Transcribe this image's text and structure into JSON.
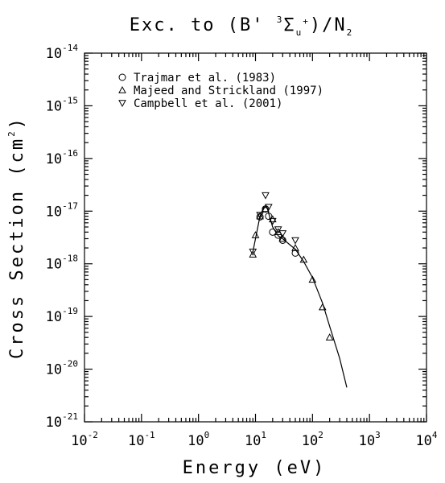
{
  "chart_data": {
    "type": "scatter",
    "title": "Exc. to (B' ³Σᵤ⁺)/N₂",
    "title_parts": {
      "pre": "Exc. to (B'",
      "sup": "3",
      "sym": "Σ",
      "sub_u": "u",
      "sup_plus": "+",
      "post": ")/N",
      "sub2": "2"
    },
    "xlabel": "Energy (eV)",
    "ylabel": "Cross Section (cm²)",
    "ylabel_parts": {
      "main": "Cross Section (cm",
      "sup": "2",
      "end": ")"
    },
    "xscale": "log",
    "yscale": "log",
    "xlim": [
      0.01,
      10000
    ],
    "ylim": [
      1e-21,
      1e-14
    ],
    "x_ticks": [
      {
        "base": "10",
        "exp": "-2"
      },
      {
        "base": "10",
        "exp": "-1"
      },
      {
        "base": "10",
        "exp": "0"
      },
      {
        "base": "10",
        "exp": "1"
      },
      {
        "base": "10",
        "exp": "2"
      },
      {
        "base": "10",
        "exp": "3"
      },
      {
        "base": "10",
        "exp": "4"
      }
    ],
    "y_ticks": [
      {
        "base": "10",
        "exp": "-21"
      },
      {
        "base": "10",
        "exp": "-20"
      },
      {
        "base": "10",
        "exp": "-19"
      },
      {
        "base": "10",
        "exp": "-18"
      },
      {
        "base": "10",
        "exp": "-17"
      },
      {
        "base": "10",
        "exp": "-16"
      },
      {
        "base": "10",
        "exp": "-15"
      },
      {
        "base": "10",
        "exp": "-14"
      }
    ],
    "legend_position": "top-left",
    "series": [
      {
        "name": "Trajmar et al. (1983)",
        "marker": "circle",
        "points": [
          [
            12,
            7.8e-18
          ],
          [
            15,
            1.1e-17
          ],
          [
            17,
            8e-18
          ],
          [
            20,
            4e-18
          ],
          [
            25,
            3.5e-18
          ],
          [
            30,
            2.8e-18
          ],
          [
            50,
            1.6e-18
          ]
        ]
      },
      {
        "name": "Majeed and Strickland (1997)",
        "marker": "triangle-up",
        "points": [
          [
            9,
            1.5e-18
          ],
          [
            10,
            3.5e-18
          ],
          [
            12,
            8e-18
          ],
          [
            15,
            1.1e-17
          ],
          [
            20,
            7e-18
          ],
          [
            25,
            4e-18
          ],
          [
            30,
            3e-18
          ],
          [
            50,
            2e-18
          ],
          [
            70,
            1.2e-18
          ],
          [
            100,
            5e-19
          ],
          [
            150,
            1.5e-19
          ],
          [
            200,
            4e-20
          ]
        ]
      },
      {
        "name": "Campbell et al. (2001)",
        "marker": "triangle-down",
        "points": [
          [
            9,
            1.7e-18
          ],
          [
            12,
            8.5e-18
          ],
          [
            15,
            2e-17
          ],
          [
            17,
            1.2e-17
          ],
          [
            20,
            6.5e-18
          ],
          [
            25,
            4.5e-18
          ],
          [
            30,
            3.8e-18
          ],
          [
            50,
            2.8e-18
          ]
        ]
      },
      {
        "name": "",
        "marker": "line",
        "points": [
          [
            9,
            1.7e-18
          ],
          [
            10,
            3e-18
          ],
          [
            12,
            8e-18
          ],
          [
            14,
            1.2e-17
          ],
          [
            16,
            1.15e-17
          ],
          [
            20,
            5e-18
          ],
          [
            25,
            3.4e-18
          ],
          [
            30,
            3e-18
          ],
          [
            40,
            2.3e-18
          ],
          [
            50,
            1.9e-18
          ],
          [
            70,
            1.1e-18
          ],
          [
            100,
            5.5e-19
          ],
          [
            150,
            1.8e-19
          ],
          [
            200,
            6.5e-20
          ],
          [
            300,
            1.6e-20
          ],
          [
            400,
            4.5e-21
          ]
        ]
      }
    ]
  }
}
